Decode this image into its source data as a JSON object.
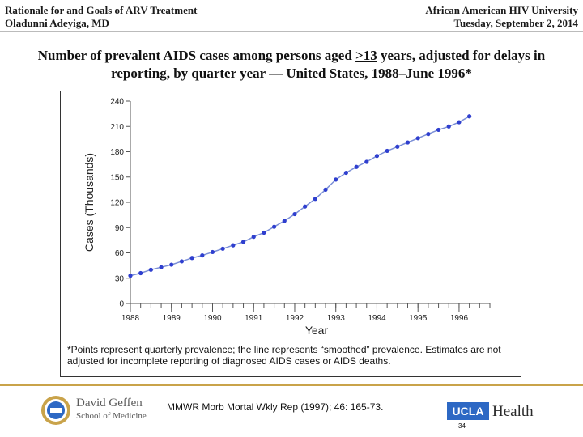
{
  "header": {
    "left_line1": "Rationale for and Goals of ARV Treatment",
    "left_line2": "Oladunni Adeyiga, MD",
    "right_line1": "African American HIV University",
    "right_line2": "Tuesday, September 2, 2014"
  },
  "slide": {
    "title_pre": "Number of prevalent AIDS cases among persons aged ",
    "title_underlined": ">13",
    "title_post": " years, adjusted for delays in reporting, by quarter year — United States, 1988–June 1996*",
    "footnote": "*Points represent quarterly prevalence; the line represents “smoothed” prevalence. Estimates are not adjusted for incomplete reporting of diagnosed AIDS cases or AIDS deaths.",
    "citation": "MMWR Morb Mortal Wkly Rep (1997); 46: 165-73.",
    "page_number": "34"
  },
  "footer": {
    "left_logo_line1": "David Geffen",
    "left_logo_line2": "School of Medicine",
    "right_logo_box": "UCLA",
    "right_logo_word": "Health"
  },
  "chart_data": {
    "type": "scatter",
    "xlabel": "Year",
    "ylabel": "Cases (Thousands)",
    "xlim": [
      1988,
      1996.75
    ],
    "ylim": [
      0,
      240
    ],
    "x_ticks": [
      1988,
      1989,
      1990,
      1991,
      1992,
      1993,
      1994,
      1995,
      1996
    ],
    "y_ticks": [
      0,
      30,
      60,
      90,
      120,
      150,
      180,
      210,
      240
    ],
    "grid": false,
    "line_color": "#7b8fd6",
    "point_color": "#2f3fcf",
    "series": [
      {
        "x": [
          1988,
          1988.25,
          1988.5,
          1988.75,
          1989,
          1989.25,
          1989.5,
          1989.75,
          1990,
          1990.25,
          1990.5,
          1990.75,
          1991,
          1991.25,
          1991.5,
          1991.75,
          1992,
          1992.25,
          1992.5,
          1992.75,
          1993,
          1993.25,
          1993.5,
          1993.75,
          1994,
          1994.25,
          1994.5,
          1994.75,
          1995,
          1995.25,
          1995.5,
          1995.75,
          1996,
          1996.25
        ],
        "y": [
          33,
          36,
          40,
          43,
          46,
          50,
          54,
          57,
          61,
          65,
          69,
          73,
          79,
          84,
          91,
          98,
          106,
          115,
          124,
          135,
          147,
          155,
          162,
          168,
          175,
          181,
          186,
          191,
          196,
          201,
          206,
          210,
          215,
          222
        ]
      }
    ]
  }
}
